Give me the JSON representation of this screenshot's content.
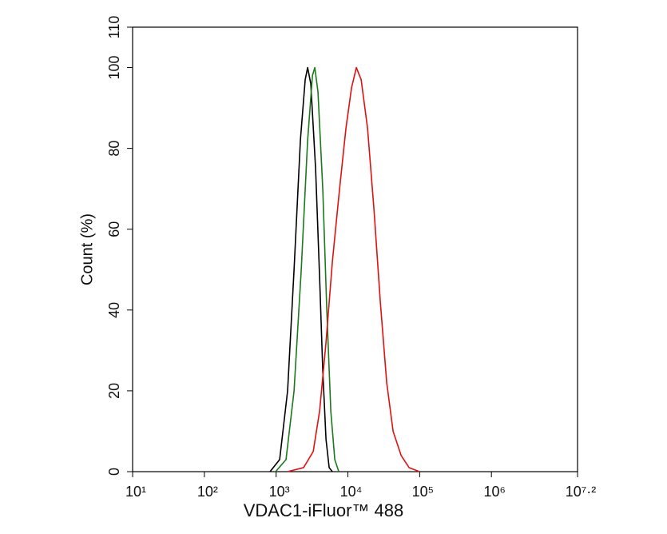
{
  "chart_data": {
    "type": "line",
    "xlabel": "VDAC1-iFluor™ 488",
    "ylabel": "Count  (%)",
    "xscale": "log",
    "xlim": [
      10,
      15848932
    ],
    "ylim": [
      0,
      110
    ],
    "xticks": [
      {
        "value": 10,
        "label": "10¹"
      },
      {
        "value": 100,
        "label": "10²"
      },
      {
        "value": 1000,
        "label": "10³"
      },
      {
        "value": 10000,
        "label": "10⁴"
      },
      {
        "value": 100000,
        "label": "10⁵"
      },
      {
        "value": 1000000,
        "label": "10⁶"
      },
      {
        "value": 15848932,
        "label": "10⁷·²"
      }
    ],
    "yticks": [
      0,
      20,
      40,
      60,
      80,
      100,
      110
    ],
    "series": [
      {
        "color": "#000000",
        "x": [
          822,
          1120,
          1445,
          1778,
          2178,
          2541,
          2748,
          3041,
          3548,
          4036,
          4467,
          4955,
          5483,
          6081
        ],
        "values": [
          0,
          3,
          20,
          50,
          82,
          97,
          100,
          96,
          75,
          48,
          25,
          8,
          1,
          0
        ]
      },
      {
        "color": "#1a7a1a",
        "x": [
          984,
          1374,
          1778,
          2239,
          2748,
          3206,
          3459,
          3828,
          4467,
          5082,
          5781,
          6568,
          7468
        ],
        "values": [
          0,
          3,
          20,
          50,
          82,
          98,
          100,
          94,
          70,
          40,
          15,
          3,
          0
        ]
      },
      {
        "color": "#e01010",
        "x": [
          1445,
          2415,
          3289,
          4036,
          4955,
          6081,
          7656,
          9397,
          11246,
          13122,
          15310,
          18793,
          23067,
          28314,
          34754,
          42658,
          55208,
          71285,
          99540
        ],
        "values": [
          0,
          1,
          5,
          15,
          32,
          52,
          70,
          85,
          95,
          100,
          97,
          85,
          65,
          42,
          22,
          10,
          4,
          1,
          0
        ]
      }
    ]
  }
}
